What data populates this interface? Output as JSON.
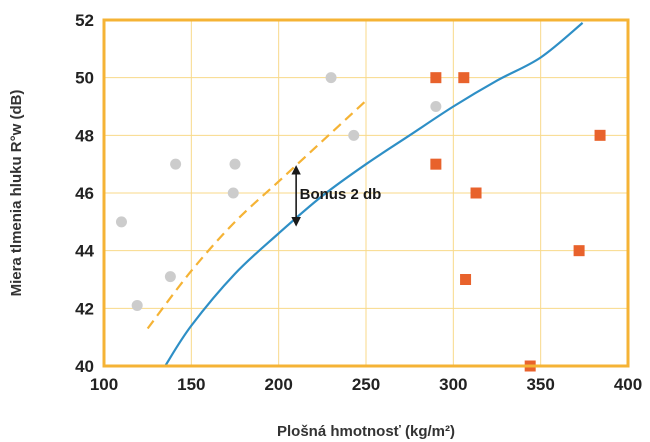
{
  "chart_data": {
    "type": "scatter",
    "xlabel": "Plošná hmotnosť (kg/m²)",
    "ylabel": "Miera tlmenia hluku R°w (dB)",
    "xlim": [
      100,
      400
    ],
    "ylim": [
      40,
      52
    ],
    "x_ticks": [
      "100",
      "150",
      "200",
      "250",
      "300",
      "350",
      "400"
    ],
    "y_ticks": [
      "40",
      "42",
      "44",
      "46",
      "48",
      "50",
      "52"
    ],
    "grid": true,
    "colors": {
      "frame": "#f5b335",
      "grid": "#f8d98a",
      "gray_points": "#cccccc",
      "orange_points": "#e8622c",
      "solid_curve": "#2e8fc6",
      "dashed_curve": "#f5b335",
      "arrow": "#1a1a1a"
    },
    "series": [
      {
        "marker": "circle",
        "color": "#cccccc",
        "points": [
          [
            110,
            45.0
          ],
          [
            119,
            42.1
          ],
          [
            138,
            43.1
          ],
          [
            141,
            47.0
          ],
          [
            174,
            46.0
          ],
          [
            175,
            47.0
          ],
          [
            230,
            50.0
          ],
          [
            243,
            48.0
          ],
          [
            290,
            49.0
          ]
        ]
      },
      {
        "marker": "square",
        "color": "#e8622c",
        "points": [
          [
            290,
            50.0
          ],
          [
            290,
            47.0
          ],
          [
            306,
            50.0
          ],
          [
            307,
            43.0
          ],
          [
            313,
            46.0
          ],
          [
            344,
            40.0
          ],
          [
            372,
            44.0
          ],
          [
            384,
            48.0
          ]
        ]
      },
      {
        "marker": "line",
        "style": "solid",
        "color": "#2e8fc6",
        "points": [
          [
            135,
            40.0
          ],
          [
            150,
            41.4
          ],
          [
            175,
            43.2
          ],
          [
            200,
            44.6
          ],
          [
            225,
            45.9
          ],
          [
            250,
            47.0
          ],
          [
            275,
            48.0
          ],
          [
            300,
            49.0
          ],
          [
            325,
            49.9
          ],
          [
            350,
            50.7
          ],
          [
            374,
            51.9
          ]
        ]
      },
      {
        "marker": "line",
        "style": "dashed",
        "color": "#f5b335",
        "points": [
          [
            125,
            41.3
          ],
          [
            150,
            43.3
          ],
          [
            175,
            45.0
          ],
          [
            200,
            46.4
          ],
          [
            225,
            47.8
          ],
          [
            250,
            49.2
          ]
        ]
      }
    ],
    "annotations": [
      {
        "text": "Bonus 2 db",
        "x": 212,
        "y": 46.0
      },
      {
        "type": "double-arrow",
        "x": 210,
        "y_from": 44.9,
        "y_to": 46.9
      }
    ]
  }
}
